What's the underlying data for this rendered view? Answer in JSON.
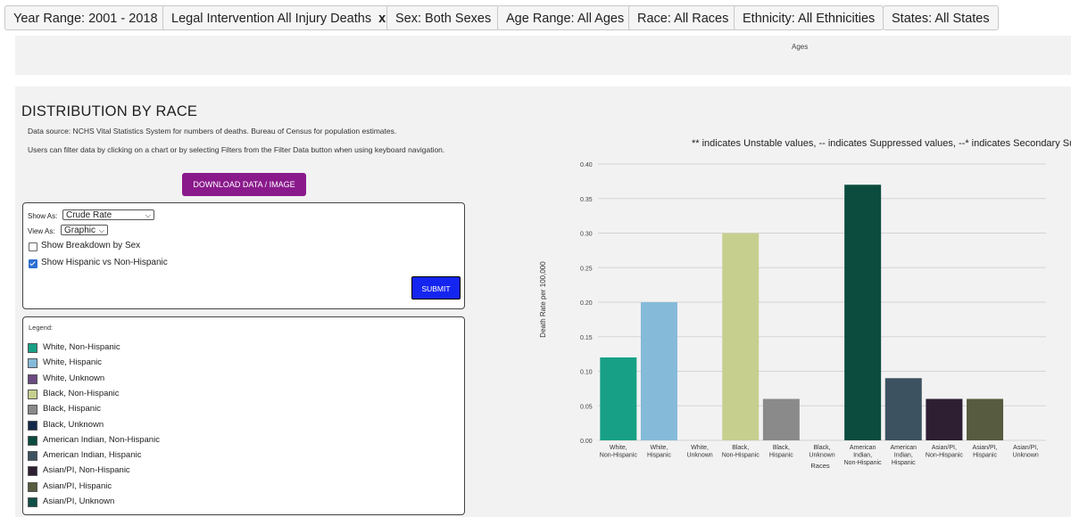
{
  "filters": [
    {
      "label": "Year Range: 2001 - 2018",
      "removable": false
    },
    {
      "label": "Legal Intervention All Injury Deaths",
      "removable": true,
      "remove_glyph": "x"
    },
    {
      "label": "Sex: Both Sexes",
      "removable": false
    },
    {
      "label": "Age Range: All Ages",
      "removable": false
    },
    {
      "label": "Race: All Races",
      "removable": false
    },
    {
      "label": "Ethnicity: All Ethnicities",
      "removable": false
    },
    {
      "label": "States: All States",
      "removable": false
    }
  ],
  "top_panel": {
    "axis_label": "Ages"
  },
  "section": {
    "title": "DISTRIBUTION BY RACE",
    "source": "Data source: NCHS Vital Statistics System for numbers of deaths. Bureau of Census for population estimates.",
    "help": "Users can filter data by clicking on a chart or by selecting Filters from the Filter Data button when using keyboard navigation.",
    "download_label": "DOWNLOAD DATA / IMAGE"
  },
  "options": {
    "show_as_label": "Show As:",
    "show_as_value": "Crude Rate",
    "view_as_label": "View As:",
    "view_as_value": "Graphic",
    "breakdown_sex_label": "Show Breakdown by Sex",
    "breakdown_sex_checked": false,
    "hispanic_label": "Show Hispanic vs Non-Hispanic",
    "hispanic_checked": true,
    "submit_label": "SUBMIT"
  },
  "legend": {
    "title": "Legend:",
    "items": [
      {
        "label": "White, Non-Hispanic",
        "color": "#17a085"
      },
      {
        "label": "White, Hispanic",
        "color": "#85bbd9"
      },
      {
        "label": "White, Unknown",
        "color": "#6b4a7f"
      },
      {
        "label": "Black, Non-Hispanic",
        "color": "#c7cf8f"
      },
      {
        "label": "Black, Hispanic",
        "color": "#8a8a8a"
      },
      {
        "label": "Black, Unknown",
        "color": "#13294b"
      },
      {
        "label": "American Indian, Non-Hispanic",
        "color": "#0b4c3f"
      },
      {
        "label": "American Indian, Hispanic",
        "color": "#3d5260"
      },
      {
        "label": "Asian/PI, Non-Hispanic",
        "color": "#2e1f33"
      },
      {
        "label": "Asian/PI, Hispanic",
        "color": "#575b3f"
      },
      {
        "label": "Asian/PI, Unknown",
        "color": "#0f4f46"
      }
    ]
  },
  "note": "** indicates Unstable values, -- indicates Suppressed values, --* indicates Secondary Suppres",
  "chart_data": {
    "type": "bar",
    "xlabel": "Races",
    "ylabel": "Death Rate per 100,000",
    "ylim": [
      0,
      0.4
    ],
    "yticks": [
      "0.00",
      "0.05",
      "0.10",
      "0.15",
      "0.20",
      "0.25",
      "0.30",
      "0.35",
      "0.40"
    ],
    "grid": true,
    "categories": [
      [
        "White,",
        "Non-Hispanic"
      ],
      [
        "White,",
        "Hispanic"
      ],
      [
        "White,",
        "Unknown"
      ],
      [
        "Black,",
        "Non-Hispanic"
      ],
      [
        "Black,",
        "Hispanic"
      ],
      [
        "Black,",
        "Unknown"
      ],
      [
        "American",
        "Indian,",
        "Non-Hispanic"
      ],
      [
        "American",
        "Indian,",
        "Hispanic"
      ],
      [
        "Asian/PI,",
        "Non-Hispanic"
      ],
      [
        "Asian/PI,",
        "Hispanic"
      ],
      [
        "Asian/PI,",
        "Unknown"
      ]
    ],
    "values": [
      0.12,
      0.2,
      0,
      0.3,
      0.06,
      0,
      0.37,
      0.09,
      0.06,
      0.06,
      0
    ],
    "colors": [
      "#17a085",
      "#85bbd9",
      "#6b4a7f",
      "#c7cf8f",
      "#8a8a8a",
      "#13294b",
      "#0b4c3f",
      "#3d5260",
      "#2e1f33",
      "#575b3f",
      "#0f4f46"
    ]
  }
}
